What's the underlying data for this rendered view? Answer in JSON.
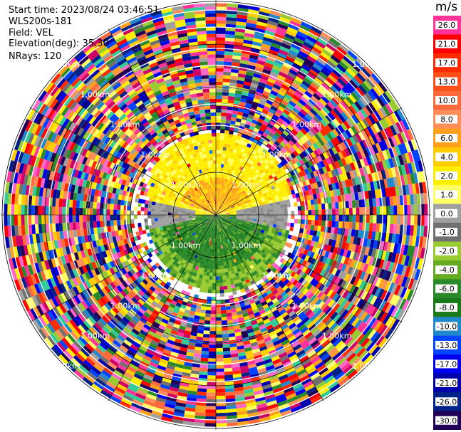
{
  "header": {
    "start_time": "Start time: 2023/08/24 03:46:51",
    "instrument": "WLS200s-181",
    "field": "Field: VEL",
    "elevation": "Elevation(deg): 35.30",
    "nrays": "NRays: 120"
  },
  "colorbar": {
    "title": "m/s",
    "ticks": [
      "26.0",
      "21.0",
      "17.0",
      "13.0",
      "10.0",
      "8.0",
      "6.0",
      "4.0",
      "2.0",
      "1.0",
      "0.0",
      "-1.0",
      "-2.0",
      "-4.0",
      "-6.0",
      "-8.0",
      "-10.0",
      "-13.0",
      "-17.0",
      "-21.0",
      "-26.0",
      "-30.0"
    ],
    "colors": [
      "#ff3399",
      "#ff0000",
      "#ff2a00",
      "#ff4f1a",
      "#ff6a3d",
      "#ff8f5a",
      "#ffa01a",
      "#ffcc00",
      "#ffee00",
      "#ffff66",
      "#a0a0a0",
      "#707070",
      "#99cc33",
      "#66aa22",
      "#2a8a2a",
      "#1a7a1a",
      "#2288cc",
      "#0044ff",
      "#0000ee",
      "#0000aa",
      "#002288",
      "#220055"
    ]
  },
  "chart_data": {
    "type": "heatmap",
    "projection": "polar PPI",
    "field": "VEL",
    "units": "m/s",
    "n_rays": 120,
    "elevation_deg": 35.3,
    "range_rings_km": [
      1.0,
      2.0,
      3.0,
      4.0,
      5.0
    ],
    "ring_label": "1.00km",
    "coherent_region_km": 2.0,
    "noise_beyond_km": 2.0,
    "summary": {
      "north_half_near_range": "positive velocities 2 to 8 m/s (yellow-orange)",
      "south_half_near_range": "negative velocities -2 to -8 m/s (green)",
      "beyond_2km": "noise covering full scale -30 to 26 m/s"
    }
  }
}
